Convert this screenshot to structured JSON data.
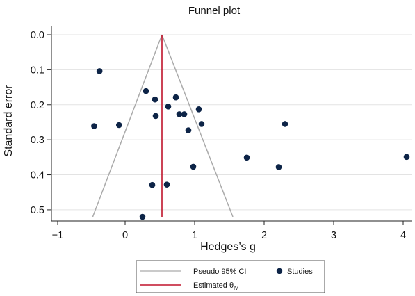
{
  "chart_data": {
    "type": "scatter",
    "title": "Funnel plot",
    "xlabel": "Hedges’s g",
    "ylabel": "Standard error",
    "xlim": [
      -1,
      4.1
    ],
    "ylim": [
      0.52,
      0.0
    ],
    "y_axis_reversed": true,
    "xticks": [
      -1,
      0,
      1,
      2,
      3,
      4
    ],
    "xtick_labels": [
      "−1",
      "0",
      "1",
      "2",
      "3",
      "4"
    ],
    "yticks": [
      0.0,
      0.1,
      0.2,
      0.3,
      0.4,
      0.5
    ],
    "ytick_labels": [
      "0.0",
      "0.1",
      "0.2",
      "0.3",
      "0.4",
      "0.5"
    ],
    "grid": "horizontal",
    "legend_position": "bottom",
    "colors": {
      "studies": "#0d2447",
      "pseudo_ci": "#aaaaaa",
      "estimate": "#c0142b"
    },
    "estimate": {
      "label": "Estimated θ",
      "label_subscript": "IV",
      "x": 0.53
    },
    "pseudo_ci": {
      "label": "Pseudo 95% CI",
      "left": [
        [
          0.53,
          0.0
        ],
        [
          -0.48,
          0.52
        ]
      ],
      "right": [
        [
          0.53,
          0.0
        ],
        [
          1.55,
          0.52
        ]
      ]
    },
    "series": [
      {
        "name": "Studies",
        "points": [
          {
            "x": -0.38,
            "y": 0.104
          },
          {
            "x": 0.3,
            "y": 0.161
          },
          {
            "x": 0.43,
            "y": 0.185
          },
          {
            "x": 0.73,
            "y": 0.179
          },
          {
            "x": 0.62,
            "y": 0.205
          },
          {
            "x": 1.06,
            "y": 0.213
          },
          {
            "x": 0.78,
            "y": 0.227
          },
          {
            "x": 0.85,
            "y": 0.227
          },
          {
            "x": 0.44,
            "y": 0.232
          },
          {
            "x": -0.09,
            "y": 0.258
          },
          {
            "x": -0.46,
            "y": 0.261
          },
          {
            "x": 1.1,
            "y": 0.255
          },
          {
            "x": 2.3,
            "y": 0.255
          },
          {
            "x": 0.91,
            "y": 0.273
          },
          {
            "x": 1.75,
            "y": 0.351
          },
          {
            "x": 4.05,
            "y": 0.349
          },
          {
            "x": 0.98,
            "y": 0.377
          },
          {
            "x": 2.21,
            "y": 0.378
          },
          {
            "x": 0.6,
            "y": 0.428
          },
          {
            "x": 0.39,
            "y": 0.429
          },
          {
            "x": 0.25,
            "y": 0.52
          }
        ]
      }
    ]
  }
}
